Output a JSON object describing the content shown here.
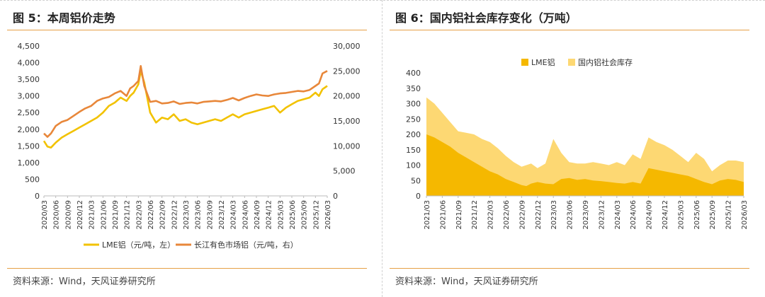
{
  "left": {
    "title": "图 5：本周铝价走势",
    "source": "资料来源：Wind，天风证券研究所",
    "chart_data": {
      "type": "line",
      "title": "本周铝价走势",
      "x_ticks": [
        "2020/03",
        "2020/06",
        "2020/09",
        "2020/12",
        "2021/03",
        "2021/06",
        "2021/09",
        "2021/12",
        "2022/03",
        "2022/06",
        "2022/09",
        "2022/12",
        "2023/03",
        "2023/06",
        "2023/09",
        "2023/12",
        "2024/03",
        "2024/06",
        "2024/09",
        "2024/12",
        "2025/03",
        "2025/06",
        "2025/09",
        "2025/12",
        "2026/03"
      ],
      "y_left_ticks": [
        "0",
        "500",
        "1,000",
        "1,500",
        "2,000",
        "2,500",
        "3,000",
        "3,500",
        "4,000",
        "4,500"
      ],
      "y_right_ticks": [
        "0",
        "5,000",
        "10,000",
        "15,000",
        "20,000",
        "25,000",
        "30,000"
      ],
      "ylim_left": [
        0,
        4500
      ],
      "ylim_right": [
        0,
        30000
      ],
      "series": [
        {
          "name": "LME铝（元/吨，左）",
          "axis": "left",
          "color": "#f2c200",
          "x": [
            0,
            0.3,
            0.6,
            1,
            1.5,
            2,
            2.5,
            3,
            3.5,
            4,
            4.5,
            5,
            5.5,
            6,
            6.5,
            7,
            7.3,
            7.6,
            8,
            8.2,
            8.5,
            9,
            9.5,
            10,
            10.5,
            11,
            11.5,
            12,
            12.5,
            13,
            13.5,
            14,
            14.5,
            15,
            15.5,
            16,
            16.5,
            17,
            17.5,
            18,
            18.5,
            19,
            19.5,
            20,
            20.5,
            21,
            21.5,
            22,
            22.5,
            23,
            23.3,
            23.6,
            24
          ],
          "values": [
            1650,
            1480,
            1450,
            1600,
            1750,
            1850,
            1950,
            2050,
            2150,
            2250,
            2350,
            2500,
            2700,
            2800,
            2950,
            2850,
            3000,
            3100,
            3350,
            3750,
            3400,
            2500,
            2200,
            2350,
            2300,
            2450,
            2250,
            2300,
            2200,
            2150,
            2200,
            2250,
            2300,
            2250,
            2350,
            2450,
            2350,
            2450,
            2500,
            2550,
            2600,
            2650,
            2700,
            2500,
            2650,
            2750,
            2850,
            2900,
            2950,
            3100,
            3000,
            3200,
            3300
          ]
        },
        {
          "name": "长江有色市场铝（元/吨，右）",
          "axis": "right",
          "color": "#e8873a",
          "x": [
            0,
            0.3,
            0.6,
            1,
            1.5,
            2,
            2.5,
            3,
            3.5,
            4,
            4.5,
            5,
            5.5,
            6,
            6.5,
            7,
            7.3,
            7.6,
            8,
            8.2,
            8.5,
            9,
            9.5,
            10,
            10.5,
            11,
            11.5,
            12,
            12.5,
            13,
            13.5,
            14,
            14.5,
            15,
            15.5,
            16,
            16.5,
            17,
            17.5,
            18,
            18.5,
            19,
            19.5,
            20,
            20.5,
            21,
            21.5,
            22,
            22.5,
            23,
            23.3,
            23.6,
            24
          ],
          "values": [
            12500,
            11800,
            12500,
            14000,
            14800,
            15200,
            16000,
            16800,
            17500,
            18000,
            19000,
            19500,
            19800,
            20500,
            21000,
            20000,
            21500,
            22000,
            23000,
            26000,
            22000,
            18800,
            19000,
            18500,
            18600,
            18900,
            18400,
            18600,
            18700,
            18500,
            18800,
            18900,
            19000,
            18900,
            19200,
            19600,
            19100,
            19600,
            20000,
            20300,
            20100,
            20000,
            20300,
            20500,
            20600,
            20800,
            21000,
            20900,
            21200,
            22000,
            22500,
            24500,
            25000
          ]
        }
      ],
      "legend": [
        "LME铝（元/吨，左）",
        "长江有色市场铝（元/吨，右）"
      ]
    }
  },
  "right": {
    "title": "图 6：国内铝社会库存变化（万吨）",
    "source": "资料来源：Wind，天风证券研究所",
    "chart_data": {
      "type": "area",
      "title": "国内铝社会库存变化（万吨）",
      "x_ticks": [
        "2021/03",
        "2021/06",
        "2021/09",
        "2021/12",
        "2022/03",
        "2022/06",
        "2022/09",
        "2022/12",
        "2023/03",
        "2023/06",
        "2023/09",
        "2023/12",
        "2024/03",
        "2024/06",
        "2024/09",
        "2024/12",
        "2025/03",
        "2025/06",
        "2025/09",
        "2025/12",
        "2026/03"
      ],
      "y_ticks": [
        "0",
        "50",
        "100",
        "150",
        "200",
        "250",
        "300",
        "350",
        "400"
      ],
      "ylim": [
        0,
        400
      ],
      "series": [
        {
          "name": "LME铝",
          "color": "#f5b800",
          "x": [
            0,
            0.5,
            1,
            1.5,
            2,
            2.5,
            3,
            3.5,
            4,
            4.5,
            5,
            5.5,
            6,
            6.3,
            6.6,
            7,
            7.5,
            8,
            8.5,
            9,
            9.5,
            10,
            10.5,
            11,
            11.5,
            12,
            12.5,
            13,
            13.5,
            14,
            14.5,
            15,
            15.5,
            16,
            16.5,
            17,
            17.5,
            18,
            18.5,
            19,
            19.5,
            20
          ],
          "values": [
            200,
            190,
            175,
            160,
            140,
            125,
            110,
            95,
            80,
            70,
            55,
            45,
            35,
            32,
            40,
            45,
            40,
            38,
            55,
            58,
            52,
            55,
            50,
            48,
            45,
            42,
            40,
            45,
            40,
            90,
            85,
            80,
            75,
            70,
            65,
            55,
            45,
            38,
            50,
            55,
            52,
            45
          ]
        },
        {
          "name": "国内铝社会库存",
          "color": "#fdd873",
          "x": [
            0,
            0.5,
            1,
            1.5,
            2,
            2.5,
            3,
            3.5,
            4,
            4.5,
            5,
            5.5,
            6,
            6.3,
            6.6,
            7,
            7.5,
            8,
            8.5,
            9,
            9.5,
            10,
            10.5,
            11,
            11.5,
            12,
            12.5,
            13,
            13.5,
            14,
            14.5,
            15,
            15.5,
            16,
            16.5,
            17,
            17.5,
            18,
            18.5,
            19,
            19.5,
            20
          ],
          "values": [
            320,
            300,
            270,
            240,
            210,
            205,
            200,
            185,
            175,
            155,
            130,
            110,
            95,
            100,
            105,
            90,
            105,
            185,
            140,
            110,
            105,
            105,
            110,
            105,
            100,
            110,
            100,
            135,
            120,
            190,
            175,
            165,
            150,
            130,
            110,
            140,
            120,
            80,
            100,
            115,
            115,
            110
          ]
        }
      ],
      "legend": [
        "LME铝",
        "国内铝社会库存"
      ]
    }
  }
}
